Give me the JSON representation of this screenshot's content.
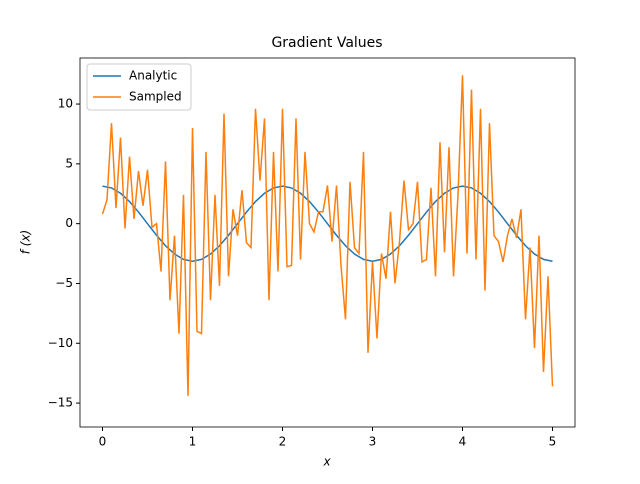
{
  "chart_data": {
    "type": "line",
    "title": "Gradient Values",
    "xlabel": "x",
    "ylabel": "f (x)",
    "xlim": [
      -0.25,
      5.25
    ],
    "ylim": [
      -17.0,
      13.85
    ],
    "xticks": [
      0,
      1,
      2,
      3,
      4,
      5
    ],
    "yticks": [
      {
        "value": -15,
        "label": "−15"
      },
      {
        "value": -10,
        "label": "−10"
      },
      {
        "value": -5,
        "label": "−5"
      },
      0,
      5,
      10
    ],
    "legend": "upper left",
    "series": [
      {
        "name": "Analytic",
        "color": "#1f77b4",
        "x": [
          0,
          0.1,
          0.2,
          0.3,
          0.4,
          0.5,
          0.6,
          0.7,
          0.8,
          0.9,
          1,
          1.1,
          1.2,
          1.3,
          1.4,
          1.5,
          1.6,
          1.7,
          1.8,
          1.9,
          2,
          2.1,
          2.2,
          2.3,
          2.4,
          2.5,
          2.6,
          2.7,
          2.8,
          2.9,
          3,
          3.1,
          3.2,
          3.3,
          3.4,
          3.5,
          3.6,
          3.7,
          3.8,
          3.9,
          4,
          4.1,
          4.2,
          4.3,
          4.4,
          4.5,
          4.6,
          4.7,
          4.8,
          4.9,
          5
        ],
        "values": [
          3.14,
          2.99,
          2.54,
          1.85,
          0.97,
          0,
          -0.97,
          -1.85,
          -2.54,
          -2.99,
          -3.14,
          -2.99,
          -2.54,
          -1.85,
          -0.97,
          0,
          0.97,
          1.85,
          2.54,
          2.99,
          3.14,
          2.99,
          2.54,
          1.85,
          0.97,
          0,
          -0.97,
          -1.85,
          -2.54,
          -2.99,
          -3.14,
          -2.99,
          -2.54,
          -1.85,
          -0.97,
          0,
          0.97,
          1.85,
          2.54,
          2.99,
          3.14,
          2.99,
          2.54,
          1.85,
          0.97,
          0,
          -0.97,
          -1.85,
          -2.54,
          -2.99,
          -3.14
        ]
      },
      {
        "name": "Sampled",
        "color": "#ff7f0e",
        "x": [
          0,
          0.05,
          0.1,
          0.15,
          0.2,
          0.25,
          0.3,
          0.35,
          0.4,
          0.45,
          0.5,
          0.55,
          0.6,
          0.65,
          0.7,
          0.75,
          0.8,
          0.85,
          0.9,
          0.95,
          1,
          1.05,
          1.1,
          1.15,
          1.2,
          1.25,
          1.3,
          1.35,
          1.4,
          1.45,
          1.5,
          1.55,
          1.6,
          1.65,
          1.7,
          1.75,
          1.8,
          1.85,
          1.9,
          1.95,
          2,
          2.05,
          2.1,
          2.15,
          2.2,
          2.25,
          2.3,
          2.35,
          2.4,
          2.45,
          2.5,
          2.55,
          2.6,
          2.65,
          2.7,
          2.75,
          2.8,
          2.85,
          2.9,
          2.95,
          3,
          3.05,
          3.1,
          3.15,
          3.2,
          3.25,
          3.3,
          3.35,
          3.4,
          3.45,
          3.5,
          3.55,
          3.6,
          3.65,
          3.7,
          3.75,
          3.8,
          3.85,
          3.9,
          3.95,
          4,
          4.05,
          4.1,
          4.15,
          4.2,
          4.25,
          4.3,
          4.35,
          4.4,
          4.45,
          4.5,
          4.55,
          4.6,
          4.65,
          4.7,
          4.75,
          4.8,
          4.85,
          4.9,
          4.95,
          5
        ],
        "values": [
          0.8,
          2,
          8.4,
          1.3,
          7.2,
          -0.4,
          5.6,
          0.4,
          4.4,
          1.5,
          4.5,
          -0.3,
          0,
          -4,
          5.2,
          -6.4,
          -1,
          -9.2,
          2.4,
          -14.4,
          8,
          -9,
          -9.2,
          6,
          -6.4,
          2.4,
          -5.2,
          9.2,
          -4.4,
          1.2,
          -1,
          2.8,
          -1.6,
          -2,
          9.6,
          3.6,
          8.8,
          -6.4,
          6,
          -4,
          9.6,
          -3.6,
          -3.5,
          8.8,
          -3,
          6,
          0,
          -0.7,
          1,
          1,
          3.2,
          -1.5,
          3.2,
          -3.5,
          -8,
          3.5,
          -2,
          -2.5,
          6,
          -10.8,
          -3.2,
          -9.6,
          -2.5,
          -4.6,
          1,
          -5,
          -1.5,
          3.6,
          -0.5,
          0,
          3.5,
          -3.2,
          -3,
          3,
          -4.4,
          6.8,
          -2.4,
          6.4,
          -4.4,
          2.4,
          12.4,
          -2.5,
          11.2,
          -3,
          9.6,
          -5.6,
          8.4,
          -1,
          -1.5,
          -3.2,
          -1,
          0.4,
          -1.2,
          1.2,
          -8,
          -2,
          -10.4,
          -1,
          -12.4,
          -4.4,
          -13.6
        ]
      }
    ]
  }
}
